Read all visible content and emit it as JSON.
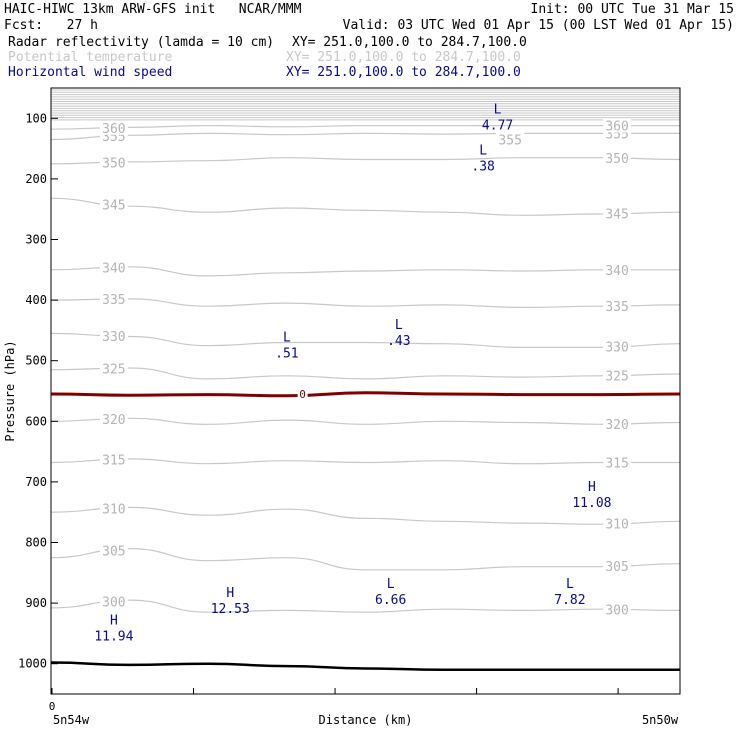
{
  "header": {
    "line1_left": "HAIC-HIWC 13km ARW-GFS init   NCAR/MMM",
    "line1_right": "Init: 00 UTC Tue 31 Mar 15",
    "line2_left": "Fcst:   27 h",
    "line2_right": "Valid: 03 UTC Wed 01 Apr 15 (00 LST Wed 01 Apr 15)",
    "fields": [
      {
        "name": "Radar reflectivity (lamda = 10 cm)",
        "xy": "XY= 251.0,100.0 to 284.7,100.0",
        "color": "#000000"
      },
      {
        "name": "Potential temperature",
        "xy": "XY= 251.0,100.0 to 284.7,100.0",
        "color": "#c8c8c8"
      },
      {
        "name": "Horizontal wind speed",
        "xy": "XY= 251.0,100.0 to 284.7,100.0",
        "color": "#0a0a8c"
      }
    ]
  },
  "chart_data": {
    "type": "line",
    "ylabel": "Pressure (hPa)",
    "xlabel": "Distance (km)",
    "x_tick_label": "0",
    "x_left_label": "5n54w",
    "x_right_label": "5n50w",
    "ylim": [
      1050,
      50
    ],
    "y_ticks": [
      100,
      200,
      300,
      400,
      500,
      600,
      700,
      800,
      900,
      1000
    ],
    "freezing_line": {
      "label": "0",
      "pressure": 555,
      "color": "#800000"
    },
    "surface_pressure": [
      998,
      1002,
      1000,
      1004,
      1008,
      1010,
      1010,
      1010,
      1010
    ],
    "theta_contours": [
      {
        "label": "300",
        "pressure": [
          908,
          895,
          915,
          912,
          915,
          910,
          912,
          910,
          912
        ]
      },
      {
        "label": "305",
        "pressure": [
          825,
          810,
          830,
          825,
          845,
          845,
          840,
          840,
          835
        ]
      },
      {
        "label": "310",
        "pressure": [
          750,
          742,
          755,
          745,
          760,
          765,
          768,
          770,
          765
        ]
      },
      {
        "label": "315",
        "pressure": [
          668,
          662,
          670,
          665,
          668,
          665,
          670,
          668,
          668
        ]
      },
      {
        "label": "320",
        "pressure": [
          600,
          595,
          605,
          598,
          605,
          600,
          602,
          605,
          602
        ]
      },
      {
        "label": "325",
        "pressure": [
          515,
          512,
          530,
          525,
          530,
          525,
          527,
          525,
          522
        ]
      },
      {
        "label": "330",
        "pressure": [
          455,
          460,
          475,
          470,
          470,
          472,
          478,
          478,
          472
        ]
      },
      {
        "label": "335",
        "pressure": [
          400,
          398,
          410,
          405,
          410,
          408,
          412,
          410,
          408
        ]
      },
      {
        "label": "340",
        "pressure": [
          350,
          345,
          360,
          355,
          352,
          350,
          352,
          350,
          350
        ]
      },
      {
        "label": "345",
        "pressure": [
          232,
          245,
          255,
          248,
          252,
          255,
          260,
          258,
          255
        ]
      },
      {
        "label": "350",
        "pressure": [
          175,
          172,
          170,
          165,
          168,
          168,
          165,
          165,
          168
        ]
      },
      {
        "label": "355",
        "pressure": [
          135,
          128,
          125,
          127,
          125,
          126,
          125,
          125,
          125
        ]
      },
      {
        "label": "360",
        "pressure": [
          118,
          115,
          112,
          114,
          112,
          112,
          112,
          112,
          112
        ]
      }
    ],
    "wind_speed_labels": [
      {
        "type": "L",
        "value": "4.77",
        "x_frac": 0.71,
        "pressure": 92
      },
      {
        "type": "L",
        "value": ".38",
        "x_frac": 0.687,
        "pressure": 160
      },
      {
        "type": "L",
        "value": ".51",
        "x_frac": 0.375,
        "pressure": 468
      },
      {
        "type": "L",
        "value": ".43",
        "x_frac": 0.553,
        "pressure": 448
      },
      {
        "type": "H",
        "value": "11.08",
        "x_frac": 0.86,
        "pressure": 715
      },
      {
        "type": "H",
        "value": "12.53",
        "x_frac": 0.285,
        "pressure": 890
      },
      {
        "type": "L",
        "value": "6.66",
        "x_frac": 0.54,
        "pressure": 875
      },
      {
        "type": "L",
        "value": "7.82",
        "x_frac": 0.825,
        "pressure": 875
      },
      {
        "type": "H",
        "value": "11.94",
        "x_frac": 0.1,
        "pressure": 935
      }
    ]
  }
}
